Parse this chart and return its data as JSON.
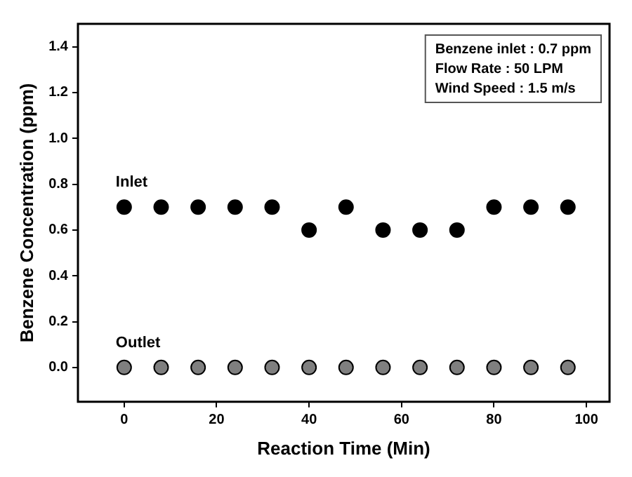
{
  "chart_data": {
    "type": "scatter",
    "xlabel": "Reaction Time (Min)",
    "ylabel": "Benzene Concentration (ppm)",
    "x": [
      0,
      8,
      16,
      24,
      32,
      40,
      48,
      56,
      64,
      72,
      80,
      88,
      96
    ],
    "series": [
      {
        "name": "Inlet",
        "color": "#000000",
        "values": [
          0.7,
          0.7,
          0.7,
          0.7,
          0.7,
          0.6,
          0.7,
          0.6,
          0.6,
          0.6,
          0.7,
          0.7,
          0.7
        ]
      },
      {
        "name": "Outlet",
        "color": "#7f7f7f",
        "values": [
          0,
          0,
          0,
          0,
          0,
          0,
          0,
          0,
          0,
          0,
          0,
          0,
          0
        ]
      }
    ],
    "xlim": [
      -10,
      105
    ],
    "xticks": [
      0,
      20,
      40,
      60,
      80,
      100
    ],
    "ylim": [
      -0.15,
      1.5
    ],
    "yticks": [
      {
        "value": 0,
        "label": "0.0"
      },
      {
        "value": 0.2,
        "label": "0.2"
      },
      {
        "value": 0.4,
        "label": "0.4"
      },
      {
        "value": 0.6,
        "label": "0.6"
      },
      {
        "value": 0.8,
        "label": "0.8"
      },
      {
        "value": 1,
        "label": "1.0"
      },
      {
        "value": 1.2,
        "label": "1.2"
      },
      {
        "value": 1.4,
        "label": "1.4"
      }
    ],
    "annotations": [
      "Benzene inlet : 0.7 ppm",
      "Flow Rate : 50 LPM",
      "Wind Speed : 1.5 m/s"
    ],
    "grid": false,
    "legend": false,
    "marker": "circle"
  }
}
